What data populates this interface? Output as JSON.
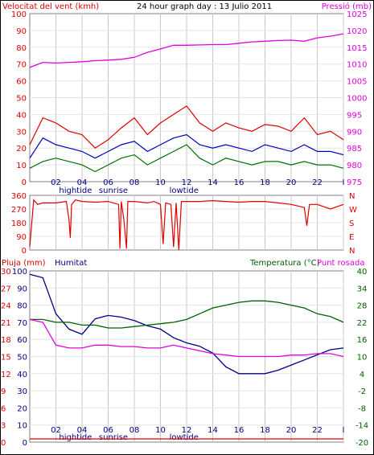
{
  "header": {
    "wind_title": "Velocitat del vent (kmh)",
    "title": "24 hour graph day : 13 Julio 2011",
    "pressure_title": "Pressió (mb)"
  },
  "labels": {
    "rain": "Pluja (mm)",
    "humidity": "Humitat",
    "temperature": "Temperatura (°C)",
    "dewpoint": "Punt rosada"
  },
  "colors": {
    "gust": "#e00000",
    "wind_avg": "#0000c0",
    "wind_min": "#007000",
    "pressure": "#e000e0",
    "direction": "#e00000",
    "humidity": "#000080",
    "temperature": "#006000",
    "dewpoint": "#e000e0",
    "rain": "#e00000",
    "grid": "#c8c8c8"
  },
  "chart_data": [
    {
      "type": "line",
      "title": "24 hour graph day : 13 Julio 2011",
      "ylabel": "Velocitat del vent (kmh)",
      "y2label": "Pressió (mb)",
      "ylim": [
        0,
        100
      ],
      "y2lim": [
        975,
        1025
      ],
      "yticks": [
        "100",
        "90",
        "80",
        "70",
        "60",
        "50",
        "40",
        "30",
        "20",
        "10",
        "0"
      ],
      "y2ticks": [
        "1025",
        "1020",
        "1015",
        "1010",
        "1005",
        "1000",
        "995",
        "990",
        "985",
        "980",
        "975"
      ],
      "xticks": [
        "02",
        "04",
        "06",
        "08",
        "10",
        "12",
        "14",
        "16",
        "18",
        "20",
        "22",
        "I"
      ],
      "xannotations": [
        {
          "label": "hightide",
          "hour": 3.5
        },
        {
          "label": "sunrise",
          "hour": 6.4
        },
        {
          "label": "lowtide",
          "hour": 11.8
        }
      ],
      "x": [
        0,
        1,
        2,
        3,
        4,
        5,
        6,
        7,
        8,
        9,
        10,
        11,
        12,
        13,
        14,
        15,
        16,
        17,
        18,
        19,
        20,
        21,
        22,
        23,
        24
      ],
      "series": [
        {
          "name": "gust",
          "axis": "left",
          "color": "gust",
          "values": [
            22,
            38,
            35,
            30,
            28,
            20,
            25,
            32,
            38,
            28,
            35,
            40,
            45,
            35,
            30,
            35,
            32,
            30,
            34,
            33,
            30,
            38,
            28,
            30,
            25
          ]
        },
        {
          "name": "average",
          "axis": "left",
          "color": "wind_avg",
          "values": [
            14,
            26,
            22,
            20,
            18,
            14,
            18,
            22,
            24,
            18,
            22,
            26,
            28,
            22,
            20,
            22,
            20,
            18,
            22,
            20,
            18,
            22,
            18,
            18,
            16
          ]
        },
        {
          "name": "minimum",
          "axis": "left",
          "color": "wind_min",
          "values": [
            8,
            12,
            14,
            12,
            10,
            6,
            10,
            14,
            16,
            10,
            14,
            18,
            22,
            14,
            10,
            14,
            12,
            10,
            12,
            12,
            10,
            12,
            10,
            10,
            8
          ]
        },
        {
          "name": "pressure",
          "axis": "right",
          "color": "pressure",
          "values": [
            1009,
            1010.5,
            1010.3,
            1010.5,
            1010.7,
            1011,
            1011.2,
            1011.4,
            1012,
            1013.5,
            1014.5,
            1015.6,
            1015.6,
            1015.7,
            1015.8,
            1015.8,
            1016.2,
            1016.6,
            1016.8,
            1017,
            1017.1,
            1016.8,
            1017.8,
            1018.3,
            1019
          ]
        }
      ]
    },
    {
      "type": "line",
      "ylim": [
        0,
        360
      ],
      "yticks": [
        "360",
        "270",
        "180",
        "90",
        "0"
      ],
      "y2ticks": [
        "N",
        "W",
        "S",
        "E",
        "N"
      ],
      "xticks": [
        "02",
        "04",
        "06",
        "08",
        "10",
        "12",
        "14",
        "16",
        "18",
        "20",
        "22",
        "I"
      ],
      "x": [
        0,
        0.3,
        0.6,
        1,
        2,
        2.8,
        3,
        3.1,
        3.2,
        3.5,
        4,
        5,
        6,
        6.8,
        6.9,
        7,
        7.2,
        7.4,
        7.5,
        8,
        9,
        9.5,
        10,
        10.2,
        10.4,
        10.8,
        11,
        11.2,
        11.4,
        11.6,
        12,
        13,
        14,
        15,
        16,
        17,
        18,
        19,
        20,
        21,
        21.2,
        21.4,
        22,
        23,
        24
      ],
      "series": [
        {
          "name": "wind direction",
          "color": "direction",
          "values": [
            20,
            330,
            300,
            310,
            310,
            320,
            200,
            80,
            300,
            330,
            320,
            315,
            320,
            300,
            10,
            320,
            200,
            10,
            320,
            320,
            310,
            320,
            300,
            40,
            310,
            300,
            20,
            310,
            0,
            320,
            320,
            320,
            325,
            320,
            315,
            320,
            320,
            310,
            300,
            280,
            160,
            300,
            300,
            270,
            300
          ]
        }
      ]
    },
    {
      "type": "line",
      "ylim": [
        0,
        100
      ],
      "yticks_humidity": [
        "100",
        "90",
        "80",
        "70",
        "60",
        "50",
        "40",
        "30",
        "20",
        "10",
        "0"
      ],
      "yticks_rain": [
        "30",
        "27",
        "24",
        "21",
        "18",
        "15",
        "12",
        "9",
        "6",
        "3",
        "0"
      ],
      "y2lim": [
        -20,
        40
      ],
      "y2ticks": [
        "40",
        "34",
        "28",
        "22",
        "16",
        "10",
        "4",
        "-2",
        "-8",
        "-14",
        "-20"
      ],
      "xticks": [
        "02",
        "04",
        "06",
        "08",
        "10",
        "12",
        "14",
        "16",
        "18",
        "20",
        "22",
        "I"
      ],
      "xannotations": [
        {
          "label": "hightide",
          "hour": 3.5
        },
        {
          "label": "sunrise",
          "hour": 6.4
        },
        {
          "label": "lowtide",
          "hour": 11.8
        }
      ],
      "x": [
        0,
        1,
        2,
        3,
        4,
        5,
        6,
        7,
        8,
        9,
        10,
        11,
        12,
        13,
        14,
        15,
        16,
        17,
        18,
        19,
        20,
        21,
        22,
        23,
        24
      ],
      "series": [
        {
          "name": "Humitat",
          "axis": "left",
          "color": "humidity",
          "values": [
            98,
            96,
            75,
            66,
            63,
            72,
            74,
            73,
            71,
            68,
            66,
            61,
            58,
            56,
            52,
            44,
            40,
            40,
            40,
            42,
            45,
            48,
            51,
            54,
            55
          ]
        },
        {
          "name": "Temperatura",
          "axis": "right",
          "color": "temperature",
          "values": [
            23,
            23,
            22,
            22,
            21,
            21,
            20,
            20,
            20.5,
            21,
            21.5,
            22,
            23,
            25,
            27,
            28,
            29,
            29.5,
            29.5,
            29,
            28,
            27,
            25,
            24,
            22
          ]
        },
        {
          "name": "Punt rosada",
          "axis": "right",
          "color": "dewpoint",
          "values": [
            23,
            22,
            14,
            13,
            13,
            14,
            14,
            13.5,
            13.5,
            13,
            13,
            14,
            13,
            12,
            11,
            10.5,
            10,
            10,
            10,
            10,
            10.5,
            10.5,
            11,
            11,
            10
          ]
        },
        {
          "name": "Pluja",
          "axis": "rain",
          "color": "rain",
          "values": [
            0,
            0,
            0,
            0,
            0,
            0,
            0,
            0,
            0,
            0,
            0,
            0,
            0,
            0,
            0,
            0,
            0,
            0,
            0,
            0,
            0,
            0,
            0,
            0,
            0
          ]
        }
      ]
    }
  ]
}
